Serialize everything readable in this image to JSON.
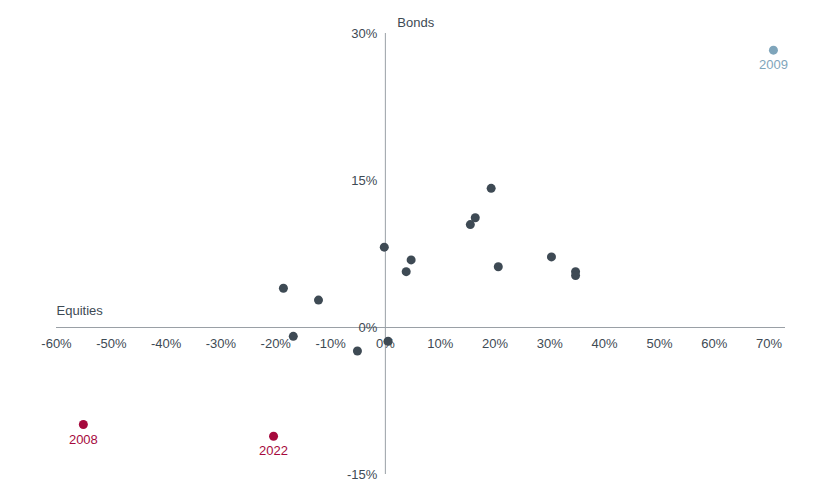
{
  "chart_data": {
    "type": "scatter",
    "x_label": "Equities",
    "y_label": "Bonds",
    "x": [
      -55.1,
      -20.4,
      -18.6,
      -12.2,
      -16.8,
      -5.1,
      0.5,
      -0.2,
      3.8,
      4.7,
      15.5,
      16.4,
      19.3,
      20.6,
      30.3,
      34.7,
      34.7,
      70.8
    ],
    "values": [
      -9.9,
      -11.1,
      4.0,
      2.8,
      -0.9,
      -2.4,
      -1.4,
      8.2,
      5.7,
      6.9,
      10.5,
      11.2,
      14.2,
      6.2,
      7.2,
      5.7,
      5.3,
      28.3
    ],
    "point_labels": [
      "2008",
      "2022",
      null,
      null,
      null,
      null,
      null,
      null,
      null,
      null,
      null,
      null,
      null,
      null,
      null,
      null,
      null,
      "2009"
    ],
    "colors": [
      "#a6093d",
      "#a6093d",
      "#3e4a54",
      "#3e4a54",
      "#3e4a54",
      "#3e4a54",
      "#3e4a54",
      "#3e4a54",
      "#3e4a54",
      "#3e4a54",
      "#3e4a54",
      "#3e4a54",
      "#3e4a54",
      "#3e4a54",
      "#3e4a54",
      "#3e4a54",
      "#3e4a54",
      "#7fa5bb"
    ],
    "xlim": [
      -60,
      73
    ],
    "ylim": [
      -15,
      30
    ],
    "xticks": [
      {
        "value": -60,
        "label": "-60%"
      },
      {
        "value": -50,
        "label": "-50%"
      },
      {
        "value": -40,
        "label": "-40%"
      },
      {
        "value": -30,
        "label": "-30%"
      },
      {
        "value": -20,
        "label": "-20%"
      },
      {
        "value": -10,
        "label": "-10%"
      },
      {
        "value": 0,
        "label": "0%"
      },
      {
        "value": 10,
        "label": "10%"
      },
      {
        "value": 20,
        "label": "20%"
      },
      {
        "value": 30,
        "label": "30%"
      },
      {
        "value": 40,
        "label": "40%"
      },
      {
        "value": 50,
        "label": "50%"
      },
      {
        "value": 60,
        "label": "60%"
      },
      {
        "value": 70,
        "label": "70%"
      }
    ],
    "yticks": [
      {
        "value": -15,
        "label": "-15%"
      },
      {
        "value": 0,
        "label": "0%"
      },
      {
        "value": 15,
        "label": "15%"
      },
      {
        "value": 30,
        "label": "30%"
      }
    ],
    "grid": false
  }
}
